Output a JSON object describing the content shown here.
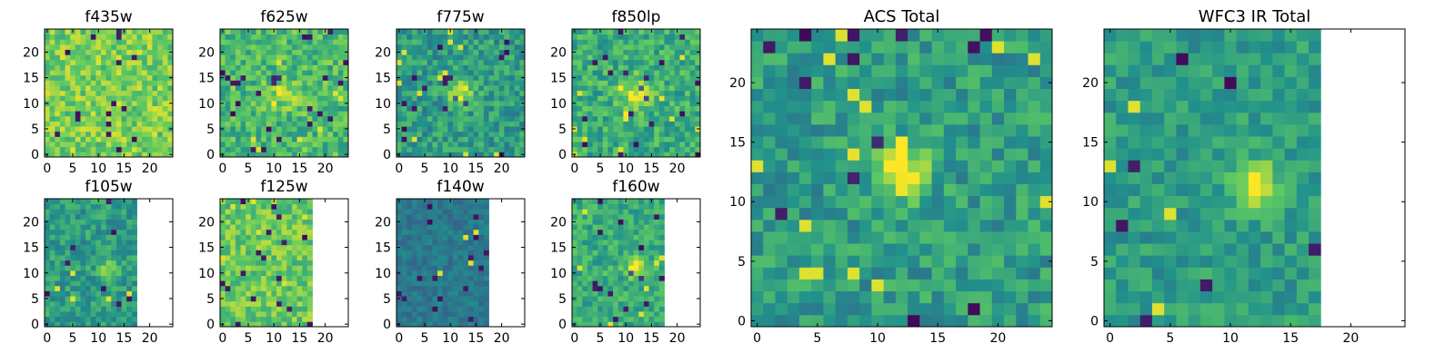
{
  "chart_data": [
    {
      "type": "heatmap",
      "title": "f435w",
      "grid_size": 25,
      "coverage_cols": 25,
      "xticks": [
        "0",
        "5",
        "10",
        "15",
        "20"
      ],
      "yticks": [
        "0",
        "5",
        "10",
        "15",
        "20"
      ],
      "xlim": [
        -0.5,
        24.5
      ],
      "ylim": [
        -0.5,
        24.5
      ],
      "base": 0.78,
      "spread": 0.16,
      "source": null,
      "seed": 11
    },
    {
      "type": "heatmap",
      "title": "f625w",
      "grid_size": 25,
      "coverage_cols": 25,
      "xticks": [
        "0",
        "5",
        "10",
        "15",
        "20"
      ],
      "yticks": [
        "0",
        "5",
        "10",
        "15",
        "20"
      ],
      "xlim": [
        -0.5,
        24.5
      ],
      "ylim": [
        -0.5,
        24.5
      ],
      "base": 0.68,
      "spread": 0.17,
      "source": {
        "x": 12,
        "y": 12,
        "amp": 0.25,
        "sigma": 1.8
      },
      "seed": 23
    },
    {
      "type": "heatmap",
      "title": "f775w",
      "grid_size": 25,
      "coverage_cols": 25,
      "xticks": [
        "0",
        "5",
        "10",
        "15",
        "20"
      ],
      "yticks": [
        "0",
        "5",
        "10",
        "15",
        "20"
      ],
      "xlim": [
        -0.5,
        24.5
      ],
      "ylim": [
        -0.5,
        24.5
      ],
      "base": 0.55,
      "spread": 0.16,
      "source": {
        "x": 12,
        "y": 12,
        "amp": 0.42,
        "sigma": 1.7
      },
      "seed": 37
    },
    {
      "type": "heatmap",
      "title": "f850lp",
      "grid_size": 25,
      "coverage_cols": 25,
      "xticks": [
        "0",
        "5",
        "10",
        "15",
        "20"
      ],
      "yticks": [
        "0",
        "5",
        "10",
        "15",
        "20"
      ],
      "xlim": [
        -0.5,
        24.5
      ],
      "ylim": [
        -0.5,
        24.5
      ],
      "base": 0.62,
      "spread": 0.16,
      "source": {
        "x": 12,
        "y": 12,
        "amp": 0.3,
        "sigma": 2.2
      },
      "seed": 41
    },
    {
      "type": "heatmap",
      "title": "f105w",
      "grid_size": 25,
      "coverage_cols": 18,
      "xticks": [
        "0",
        "5",
        "10",
        "15",
        "20"
      ],
      "yticks": [
        "0",
        "5",
        "10",
        "15",
        "20"
      ],
      "xlim": [
        -0.5,
        24.5
      ],
      "ylim": [
        -0.5,
        24.5
      ],
      "base": 0.55,
      "spread": 0.14,
      "source": {
        "x": 12,
        "y": 11,
        "amp": 0.3,
        "sigma": 1.4
      },
      "seed": 53
    },
    {
      "type": "heatmap",
      "title": "f125w",
      "grid_size": 25,
      "coverage_cols": 18,
      "xticks": [
        "0",
        "5",
        "10",
        "15",
        "20"
      ],
      "yticks": [
        "0",
        "5",
        "10",
        "15",
        "20"
      ],
      "xlim": [
        -0.5,
        24.5
      ],
      "ylim": [
        -0.5,
        24.5
      ],
      "base": 0.75,
      "spread": 0.15,
      "source": null,
      "seed": 67
    },
    {
      "type": "heatmap",
      "title": "f140w",
      "grid_size": 25,
      "coverage_cols": 18,
      "xticks": [
        "0",
        "5",
        "10",
        "15",
        "20"
      ],
      "yticks": [
        "0",
        "5",
        "10",
        "15",
        "20"
      ],
      "xlim": [
        -0.5,
        24.5
      ],
      "ylim": [
        -0.5,
        24.5
      ],
      "base": 0.4,
      "spread": 0.08,
      "source": null,
      "seed": 71
    },
    {
      "type": "heatmap",
      "title": "f160w",
      "grid_size": 25,
      "coverage_cols": 18,
      "xticks": [
        "0",
        "5",
        "10",
        "15",
        "20"
      ],
      "yticks": [
        "0",
        "5",
        "10",
        "15",
        "20"
      ],
      "xlim": [
        -0.5,
        24.5
      ],
      "ylim": [
        -0.5,
        24.5
      ],
      "base": 0.62,
      "spread": 0.14,
      "source": {
        "x": 12,
        "y": 11,
        "amp": 0.35,
        "sigma": 1.3
      },
      "seed": 89
    },
    {
      "type": "heatmap",
      "title": "ACS Total",
      "grid_size": 25,
      "coverage_cols": 25,
      "xticks": [
        "0",
        "5",
        "10",
        "15",
        "20"
      ],
      "yticks": [
        "0",
        "5",
        "10",
        "15",
        "20"
      ],
      "xlim": [
        -0.5,
        24.5
      ],
      "ylim": [
        -0.5,
        24.5
      ],
      "base": 0.55,
      "spread": 0.15,
      "source": {
        "x": 12,
        "y": 12.5,
        "amp": 0.45,
        "sigma": 1.6
      },
      "seed": 97
    },
    {
      "type": "heatmap",
      "title": "WFC3 IR Total",
      "grid_size": 25,
      "coverage_cols": 18,
      "xticks": [
        "0",
        "5",
        "10",
        "15",
        "20"
      ],
      "yticks": [
        "0",
        "5",
        "10",
        "15",
        "20"
      ],
      "xlim": [
        -0.5,
        24.5
      ],
      "ylim": [
        -0.5,
        24.5
      ],
      "base": 0.55,
      "spread": 0.12,
      "source": {
        "x": 12,
        "y": 11.5,
        "amp": 0.45,
        "sigma": 1.4
      },
      "seed": 103
    }
  ],
  "colormap": [
    "#440154",
    "#3b528b",
    "#21918c",
    "#5ec962",
    "#fde725"
  ]
}
